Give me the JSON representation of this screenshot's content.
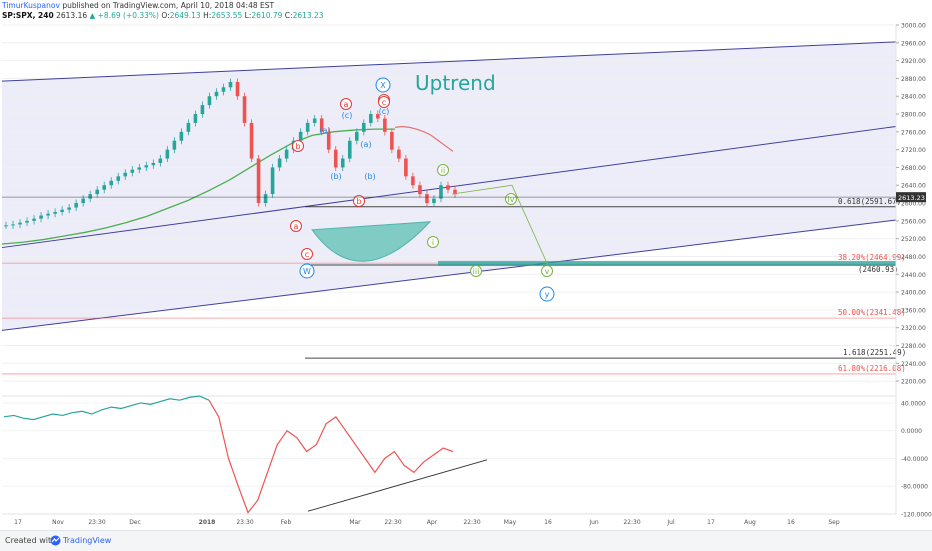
{
  "header": {
    "author": "TimurKuspanov",
    "published": "published on TradingView.com, April 10, 2018 04:48 EST",
    "symbol": "SP:SPX, 240",
    "last": "2613.16",
    "change": "▲ +8.69 (+0.33%)",
    "open_label": "O:",
    "open": "2649.13",
    "high_label": "H:",
    "high": "2653.55",
    "low_label": "L:",
    "low": "2610.79",
    "close_label": "C:",
    "close": "2613.23"
  },
  "footer": {
    "created_with": "Created with",
    "brand": "TradingView"
  },
  "chart_data": [
    {
      "type": "line",
      "subtype": "candlestick",
      "symbol": "SP:SPX",
      "interval": "240",
      "ylim": [
        2180,
        3000
      ],
      "y_ticks": [
        "3000.00",
        "2960.00",
        "2920.00",
        "2880.00",
        "2840.00",
        "2800.00",
        "2760.00",
        "2720.00",
        "2680.00",
        "2640.00",
        "2600.00",
        "2560.00",
        "2520.00",
        "2480.00",
        "2440.00",
        "2400.00",
        "2360.00",
        "2320.00",
        "2280.00",
        "2240.00",
        "2200.00"
      ],
      "last_price_label": "2613.23",
      "x_ticks": [
        "17",
        "Nov",
        "23:30",
        "Dec",
        "2018",
        "23:30",
        "Feb",
        "Mar",
        "22:30",
        "Apr",
        "22:30",
        "May",
        "16",
        "Jun",
        "22:30",
        "Jul",
        "17",
        "Aug",
        "16",
        "Sep"
      ],
      "series": [
        {
          "kind": "price",
          "points": [
            2550,
            2552,
            2556,
            2560,
            2565,
            2572,
            2576,
            2580,
            2585,
            2590,
            2600,
            2610,
            2620,
            2630,
            2640,
            2650,
            2660,
            2668,
            2675,
            2680,
            2685,
            2690,
            2700,
            2720,
            2740,
            2760,
            2780,
            2800,
            2820,
            2840,
            2850,
            2860,
            2872,
            2840,
            2780,
            2700,
            2600,
            2620,
            2680,
            2700,
            2720,
            2740,
            2760,
            2780,
            2790,
            2760,
            2720,
            2680,
            2700,
            2740,
            2760,
            2780,
            2800,
            2790,
            2760,
            2720,
            2700,
            2660,
            2640,
            2620,
            2600,
            2610,
            2640,
            2630,
            2620
          ]
        },
        {
          "kind": "moving-average-red",
          "points": [
            2770,
            2772,
            2770,
            2766,
            2760,
            2752,
            2740,
            2728,
            2716
          ]
        },
        {
          "kind": "moving-average-green",
          "points": [
            2508,
            2512,
            2518,
            2526,
            2534,
            2544,
            2556,
            2570,
            2588,
            2606,
            2628,
            2652,
            2680,
            2708,
            2734,
            2752,
            2760,
            2764,
            2766,
            2766
          ]
        }
      ],
      "annotations": {
        "title_text": "Uptrend",
        "fib_levels": [
          {
            "label": "0.618(2591.67)",
            "value": 2591.67,
            "color": "#333333"
          },
          {
            "label": "38.20%(2464.99)",
            "value": 2464.99,
            "color": "#ef5350"
          },
          {
            "label": "(2460.93)",
            "value": 2460.93,
            "color": "#333333"
          },
          {
            "label": "50.00%(2341.48)",
            "value": 2341.48,
            "color": "#ef5350"
          },
          {
            "label": "1.618(2251.49)",
            "value": 2251.49,
            "color": "#333333"
          },
          {
            "label": "61.80%(2216.08)",
            "value": 2216.08,
            "color": "#ef5350"
          }
        ],
        "wave_labels": [
          {
            "text": "X",
            "color": "#1e88e5",
            "style": "circle"
          },
          {
            "text": "W",
            "color": "#1e88e5",
            "style": "circle"
          },
          {
            "text": "y",
            "color": "#1e88e5",
            "style": "circle"
          },
          {
            "text": "a",
            "color": "#e53935",
            "style": "circle"
          },
          {
            "text": "b",
            "color": "#e53935",
            "style": "circle"
          },
          {
            "text": "c",
            "color": "#e53935",
            "style": "circle"
          },
          {
            "text": "(a)",
            "color": "#1e88e5",
            "style": "plain"
          },
          {
            "text": "(b)",
            "color": "#1e88e5",
            "style": "plain"
          },
          {
            "text": "(c)",
            "color": "#1e88e5",
            "style": "plain"
          },
          {
            "text": "i",
            "color": "#7cb342",
            "style": "circle"
          },
          {
            "text": "ii",
            "color": "#7cb342",
            "style": "circle"
          },
          {
            "text": "iii",
            "color": "#7cb342",
            "style": "circle"
          },
          {
            "text": "iv",
            "color": "#7cb342",
            "style": "circle"
          },
          {
            "text": "v",
            "color": "#7cb342",
            "style": "circle"
          }
        ]
      }
    },
    {
      "type": "line",
      "subtype": "oscillator",
      "ylim": [
        -120,
        50
      ],
      "y_ticks": [
        "40.0000",
        "0.0000",
        "-40.0000",
        "-80.0000",
        "-120.0000"
      ],
      "series": [
        {
          "kind": "oscillator",
          "points": [
            20,
            22,
            18,
            16,
            20,
            24,
            22,
            26,
            28,
            24,
            30,
            34,
            32,
            36,
            40,
            38,
            42,
            46,
            44,
            48,
            50,
            44,
            20,
            -40,
            -80,
            -118,
            -100,
            -60,
            -20,
            0,
            -10,
            -30,
            -20,
            10,
            20,
            0,
            -20,
            -40,
            -60,
            -40,
            -30,
            -50,
            -60,
            -45,
            -35,
            -25,
            -30
          ]
        }
      ]
    }
  ]
}
